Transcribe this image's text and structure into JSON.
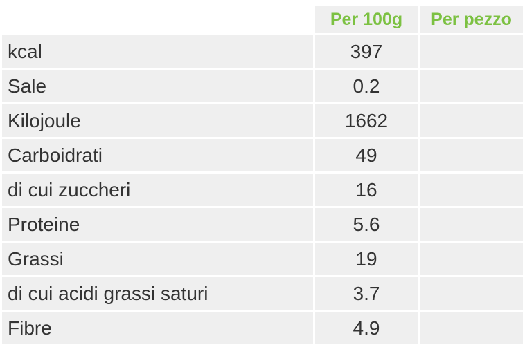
{
  "table": {
    "columns": [
      "Per 100g",
      "Per pezzo"
    ],
    "rows": [
      [
        "kcal",
        397
      ],
      [
        "Sale",
        0.2
      ],
      [
        "Kilojoule",
        1662
      ],
      [
        "Carboidrati",
        49
      ],
      [
        "di cui zuccheri",
        16
      ],
      [
        "Proteine",
        5.6
      ],
      [
        "Grassi",
        19
      ],
      [
        "di cui acidi grassi saturi",
        3.7
      ],
      [
        "Fibre",
        4.9
      ]
    ]
  }
}
